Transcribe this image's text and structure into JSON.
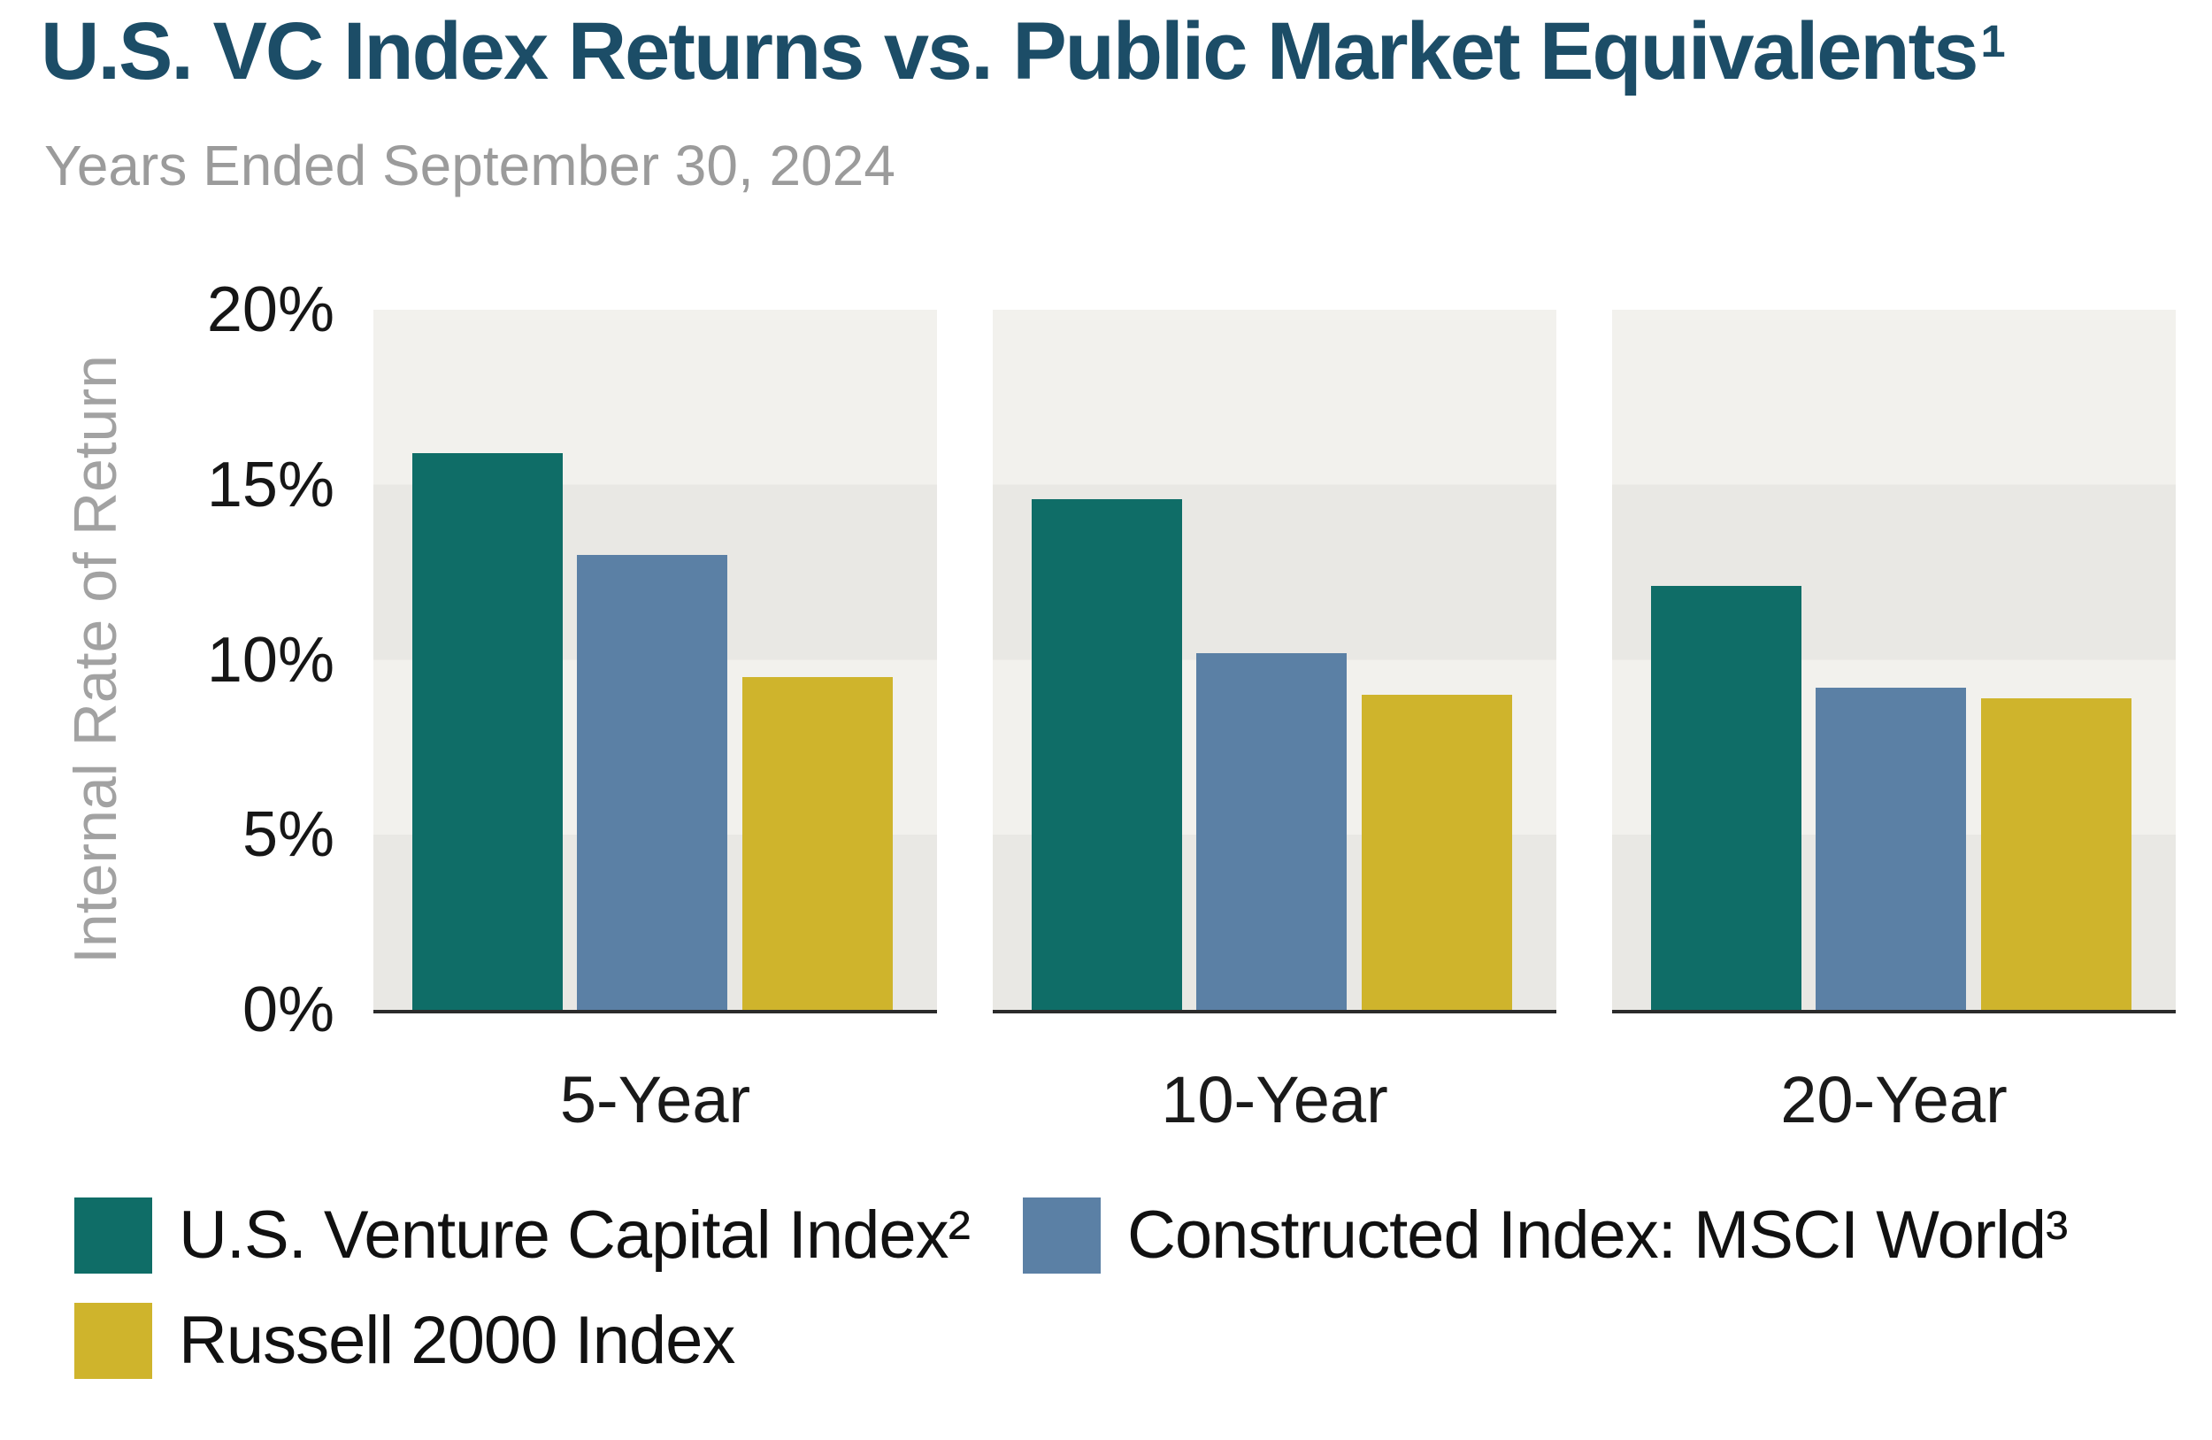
{
  "header": {
    "title": "U.S. VC Index Returns vs. Public Market Equivalents",
    "title_sup": "1",
    "subtitle": "Years Ended September 30, 2024"
  },
  "chart_data": {
    "type": "bar",
    "title": "U.S. VC Index Returns vs. Public Market Equivalents¹",
    "subtitle": "Years Ended September 30, 2024",
    "xlabel": "",
    "ylabel": "Internal Rate of Return",
    "unit": "%",
    "ylim": [
      0,
      20
    ],
    "ytick_labels": [
      "20%",
      "15%",
      "10%",
      "5%",
      "0%"
    ],
    "ytick_values": [
      20,
      15,
      10,
      5,
      0
    ],
    "grid": "horizontal striped 5% bands, alternating light/dark gray",
    "legend_position": "bottom-left, two rows",
    "categories": [
      "5-Year",
      "10-Year",
      "20-Year"
    ],
    "series": [
      {
        "name": "U.S. Venture Capital Index²",
        "color": "#0f6d67",
        "values": [
          15.9,
          14.6,
          12.1
        ]
      },
      {
        "name": "Constructed Index: MSCI World³",
        "color": "#5b80a5",
        "values": [
          13.0,
          10.2,
          9.2
        ]
      },
      {
        "name": "Russell 2000 Index",
        "color": "#cfb42c",
        "values": [
          9.5,
          9.0,
          8.9
        ]
      }
    ]
  },
  "colors": {
    "title": "#1c4d67",
    "subtitle": "#9b9b9b",
    "axis_label": "#a2a2a2",
    "tick_label": "#161616",
    "band_light": "#f2f1ed",
    "band_dark": "#e9e8e4",
    "axis_line": "#2b2b2b",
    "background": "#ffffff"
  }
}
